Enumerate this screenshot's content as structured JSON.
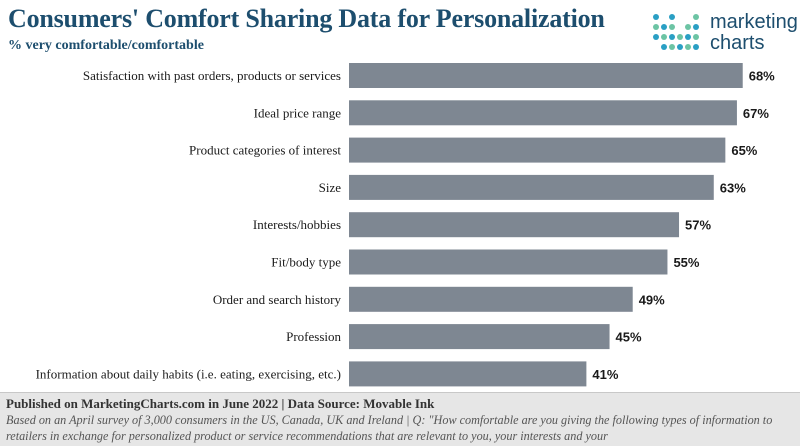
{
  "header": {
    "title": "Consumers' Comfort Sharing Data for Personalization",
    "subtitle": "% very comfortable/comfortable"
  },
  "logo": {
    "line1": "marketing",
    "line2": "charts",
    "colors": [
      "#2a9fc4",
      "#6cc4a4",
      "#1d4e6e"
    ]
  },
  "chart_data": {
    "type": "bar",
    "orientation": "horizontal",
    "categories": [
      "Satisfaction with past orders, products or services",
      "Ideal price range",
      "Product categories of interest",
      "Size",
      "Interests/hobbies",
      "Fit/body type",
      "Order and search history",
      "Profession",
      "Information about daily habits (i.e. eating, exercising, etc.)"
    ],
    "values": [
      68,
      67,
      65,
      63,
      57,
      55,
      49,
      45,
      41
    ],
    "value_labels": [
      "68%",
      "67%",
      "65%",
      "63%",
      "57%",
      "55%",
      "49%",
      "45%",
      "41%"
    ],
    "unit": "%",
    "xlim": [
      0,
      70
    ],
    "bar_color": "#7e8792",
    "grid": false
  },
  "footer": {
    "published": "Published on MarketingCharts.com in June 2022 | Data Source: Movable Ink",
    "note": "Based on an April survey of 3,000 consumers in the US, Canada, UK and Ireland | Q: \"How comfortable are you giving the following types of information to retailers in exchange for personalized product or service recommendations that are relevant to you, your interests and your"
  }
}
